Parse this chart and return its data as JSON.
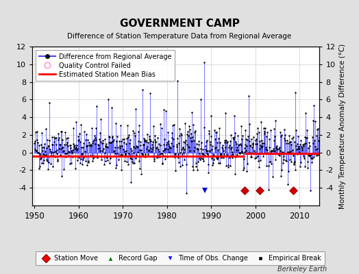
{
  "title": "GOVERNMENT CAMP",
  "subtitle": "Difference of Station Temperature Data from Regional Average",
  "ylabel": "Monthly Temperature Anomaly Difference (°C)",
  "xlabel_years": [
    1950,
    1960,
    1970,
    1980,
    1990,
    2000,
    2010
  ],
  "ylim": [
    -6,
    12
  ],
  "yticks": [
    -4,
    -2,
    0,
    2,
    4,
    6,
    8,
    10,
    12
  ],
  "yticks_left": [
    -4,
    -2,
    0,
    2,
    4,
    6,
    8,
    10,
    12
  ],
  "xlim": [
    1949.5,
    2014.5
  ],
  "bg_color": "#e0e0e0",
  "plot_bg_color": "#ffffff",
  "line_color": "#4444ff",
  "dot_color": "#000000",
  "bias_color": "#ff0000",
  "station_move_color": "#cc0000",
  "obs_change_color": "#0000cc",
  "footer": "Berkeley Earth",
  "station_moves": [
    1997.5,
    2001.0,
    2008.5
  ],
  "obs_changes": [
    1988.5
  ],
  "bias_line_y": -0.4,
  "bias_line_y2": -0.1,
  "bias_break_x": 1997.5,
  "seed": 42
}
